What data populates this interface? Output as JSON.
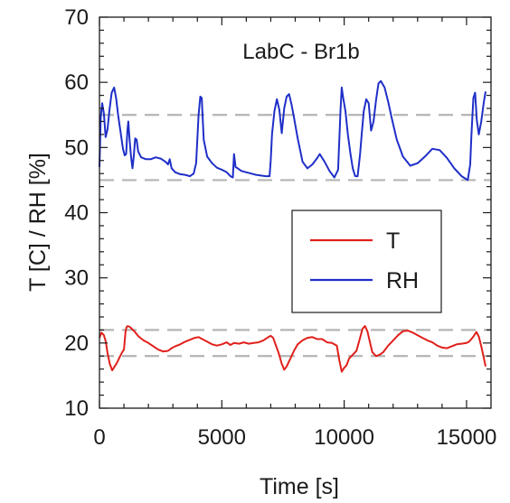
{
  "chart_data": {
    "type": "line",
    "title": "LabC - Br1b",
    "xlabel": "Time [s]",
    "ylabel": "T [C] / RH [%]",
    "xlim": [
      0,
      16000
    ],
    "ylim": [
      10,
      70
    ],
    "xticks": [
      "0",
      "5000",
      "10000",
      "15000"
    ],
    "yticks": [
      "10",
      "20",
      "30",
      "40",
      "50",
      "60",
      "70"
    ],
    "grid": false,
    "legend_position": "center-right",
    "reference_lines": [
      {
        "y": 55,
        "color": "#b4b4b4",
        "style": "dashed"
      },
      {
        "y": 45,
        "color": "#b4b4b4",
        "style": "dashed"
      },
      {
        "y": 22,
        "color": "#b4b4b4",
        "style": "dashed"
      },
      {
        "y": 18,
        "color": "#b4b4b4",
        "style": "dashed"
      }
    ],
    "series": [
      {
        "name": "T",
        "color": "#e0201b",
        "x": [
          0,
          80,
          180,
          260,
          330,
          420,
          520,
          620,
          720,
          820,
          930,
          1000,
          1060,
          1100,
          1150,
          1230,
          1320,
          1450,
          1600,
          1800,
          2000,
          2200,
          2400,
          2600,
          2800,
          2950,
          3100,
          3300,
          3500,
          3700,
          3900,
          4050,
          4200,
          4400,
          4600,
          4800,
          5000,
          5200,
          5350,
          5500,
          5700,
          5900,
          6100,
          6300,
          6500,
          6700,
          6900,
          7000,
          7100,
          7200,
          7320,
          7450,
          7550,
          7650,
          7800,
          7950,
          8100,
          8300,
          8500,
          8700,
          8900,
          9100,
          9300,
          9500,
          9700,
          9800,
          9900,
          10000,
          10100,
          10200,
          10350,
          10500,
          10650,
          10750,
          10850,
          10950,
          11050,
          11150,
          11300,
          11450,
          11600,
          11800,
          12000,
          12200,
          12400,
          12600,
          12800,
          13000,
          13200,
          13400,
          13600,
          13800,
          14000,
          14200,
          14400,
          14600,
          14800,
          15000,
          15100,
          15200,
          15300,
          15400,
          15500,
          15600,
          15700,
          15780
        ],
        "values": [
          20.8,
          21.6,
          21.2,
          20.2,
          18.5,
          16.8,
          15.8,
          16.4,
          17.0,
          17.8,
          18.6,
          19.0,
          21.6,
          22.4,
          22.6,
          22.5,
          22.2,
          21.7,
          21.0,
          20.4,
          20.0,
          19.5,
          19.0,
          18.7,
          18.8,
          19.2,
          19.5,
          19.8,
          20.2,
          20.5,
          20.8,
          20.9,
          20.6,
          20.2,
          19.8,
          19.6,
          19.8,
          20.1,
          19.7,
          20.0,
          19.9,
          20.1,
          19.9,
          20.0,
          20.1,
          20.4,
          20.9,
          21.1,
          20.8,
          19.7,
          18.5,
          16.8,
          15.9,
          16.4,
          17.6,
          18.8,
          19.8,
          20.4,
          20.8,
          20.9,
          20.6,
          20.6,
          20.1,
          20.0,
          19.6,
          17.4,
          15.6,
          16.2,
          16.6,
          17.6,
          18.2,
          18.8,
          20.8,
          22.2,
          22.6,
          21.8,
          20.2,
          18.6,
          18.0,
          18.2,
          18.6,
          19.6,
          20.4,
          21.2,
          21.8,
          21.9,
          21.6,
          21.2,
          20.8,
          20.4,
          20.1,
          19.6,
          19.3,
          19.2,
          19.5,
          19.8,
          19.9,
          20.0,
          20.2,
          20.6,
          21.1,
          21.7,
          21.0,
          19.5,
          17.8,
          16.4
        ]
      },
      {
        "name": "RH",
        "color": "#1f2fc8",
        "x": [
          0,
          50,
          110,
          180,
          250,
          330,
          410,
          500,
          600,
          680,
          760,
          860,
          960,
          1030,
          1090,
          1140,
          1180,
          1230,
          1290,
          1350,
          1400,
          1460,
          1520,
          1580,
          1700,
          1900,
          2100,
          2300,
          2500,
          2700,
          2800,
          2870,
          2950,
          3100,
          3300,
          3500,
          3700,
          3850,
          3950,
          4050,
          4120,
          4180,
          4260,
          4400,
          4600,
          4800,
          5000,
          5200,
          5350,
          5450,
          5500,
          5560,
          5650,
          5800,
          6000,
          6200,
          6400,
          6600,
          6800,
          6950,
          7000,
          7050,
          7150,
          7250,
          7350,
          7450,
          7550,
          7650,
          7750,
          7850,
          7950,
          8100,
          8300,
          8500,
          8700,
          8900,
          9000,
          9200,
          9400,
          9600,
          9750,
          9850,
          9900,
          9950,
          10050,
          10150,
          10250,
          10350,
          10450,
          10550,
          10650,
          10720,
          10800,
          10900,
          11000,
          11100,
          11200,
          11300,
          11400,
          11500,
          11650,
          11800,
          11950,
          12150,
          12400,
          12700,
          13000,
          13300,
          13600,
          13900,
          14200,
          14500,
          14800,
          15050,
          15150,
          15200,
          15280,
          15350,
          15420,
          15500,
          15600,
          15700,
          15780
        ],
        "values": [
          47.0,
          54.6,
          56.8,
          55.2,
          51.6,
          52.8,
          55.8,
          58.4,
          59.2,
          57.6,
          55.0,
          52.4,
          49.8,
          48.8,
          49.0,
          52.6,
          54.0,
          51.2,
          48.6,
          46.8,
          48.6,
          51.4,
          51.2,
          49.4,
          48.5,
          48.2,
          48.2,
          48.5,
          48.3,
          47.8,
          47.4,
          48.2,
          46.8,
          46.2,
          45.9,
          45.8,
          45.6,
          46.0,
          47.6,
          55.0,
          57.8,
          57.6,
          51.2,
          48.6,
          47.6,
          46.9,
          46.6,
          46.2,
          45.6,
          45.4,
          49.0,
          47.0,
          46.8,
          46.4,
          46.2,
          46.0,
          45.8,
          45.7,
          45.6,
          45.6,
          48.0,
          52.0,
          55.6,
          57.4,
          55.8,
          52.2,
          56.0,
          57.8,
          58.2,
          56.6,
          54.6,
          51.4,
          47.8,
          46.8,
          47.4,
          48.4,
          49.0,
          47.8,
          46.4,
          45.4,
          46.6,
          55.8,
          59.2,
          57.8,
          55.6,
          52.0,
          49.2,
          46.8,
          45.6,
          45.6,
          49.0,
          52.2,
          55.6,
          57.4,
          56.8,
          52.6,
          54.0,
          57.2,
          59.8,
          60.2,
          59.2,
          57.0,
          54.4,
          51.2,
          48.6,
          47.2,
          47.6,
          48.6,
          49.8,
          49.6,
          48.4,
          46.8,
          45.6,
          45.0,
          47.4,
          51.8,
          57.6,
          58.4,
          54.2,
          52.0,
          54.0,
          56.8,
          58.6
        ]
      }
    ]
  }
}
